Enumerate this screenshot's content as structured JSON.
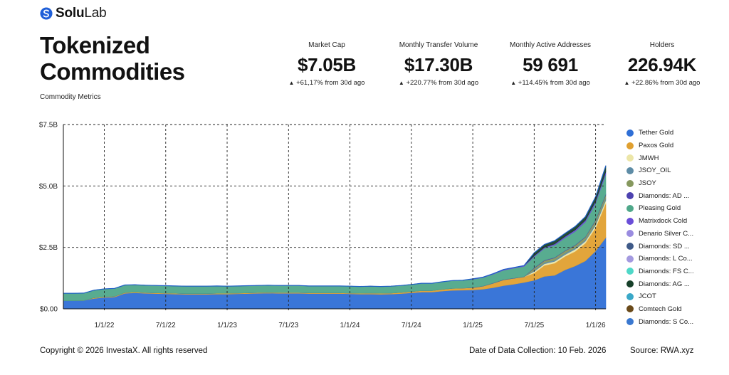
{
  "brand": {
    "name_part1": "Solu",
    "name_part2": "Lab"
  },
  "header": {
    "title_line1": "Tokenized",
    "title_line2": "Commodities",
    "subtitle": "Commodity Metrics"
  },
  "metrics": [
    {
      "label": "Market Cap",
      "value": "$7.05B",
      "change": "+61,17% from 30d ago"
    },
    {
      "label": "Monthly Transfer Volume",
      "value": "$17.30B",
      "change": "+220.77% from 30d ago"
    },
    {
      "label": "Monthly Active Addresses",
      "value": "59 691",
      "change": "+114.45% from 30d ago"
    },
    {
      "label": "Holders",
      "value": "226.94K",
      "change": "+22.86% from 30d ago"
    }
  ],
  "legend": [
    {
      "name": "Tether Gold",
      "color": "#2f6fd6"
    },
    {
      "name": "Paxos Gold",
      "color": "#e0a030"
    },
    {
      "name": "JMWH",
      "color": "#ece6a8"
    },
    {
      "name": "JSOY_OIL",
      "color": "#5e8ca6"
    },
    {
      "name": "JSOY",
      "color": "#86985e"
    },
    {
      "name": "Diamonds: AD ...",
      "color": "#4d42b0"
    },
    {
      "name": "Pleasing Gold",
      "color": "#4fa88a"
    },
    {
      "name": "Matrixdock Cold",
      "color": "#6a4ed8"
    },
    {
      "name": "Denario Silver C...",
      "color": "#9a8ce0"
    },
    {
      "name": "Diamonds: SD ...",
      "color": "#3f5a88"
    },
    {
      "name": "Diamonds: L Co...",
      "color": "#a49ae0"
    },
    {
      "name": "Diamonds: FS C...",
      "color": "#4fd8c8"
    },
    {
      "name": "Diamonds: AG ...",
      "color": "#17402a"
    },
    {
      "name": "JCOT",
      "color": "#3aa8c8"
    },
    {
      "name": "Comtech Gold",
      "color": "#6a4a1a"
    },
    {
      "name": "Diamonds: S Co...",
      "color": "#3a78d0"
    }
  ],
  "chart_data": {
    "type": "area",
    "stacked": true,
    "x": [
      "2021-09",
      "2021-10",
      "2021-11",
      "2021-12",
      "2022-01",
      "2022-02",
      "2022-03",
      "2022-04",
      "2022-05",
      "2022-06",
      "2022-07",
      "2022-08",
      "2022-09",
      "2022-10",
      "2022-11",
      "2022-12",
      "2023-01",
      "2023-02",
      "2023-03",
      "2023-04",
      "2023-05",
      "2023-06",
      "2023-07",
      "2023-08",
      "2023-09",
      "2023-10",
      "2023-11",
      "2023-12",
      "2024-01",
      "2024-02",
      "2024-03",
      "2024-04",
      "2024-05",
      "2024-06",
      "2024-07",
      "2024-08",
      "2024-09",
      "2024-10",
      "2024-11",
      "2024-12",
      "2025-01",
      "2025-02",
      "2025-03",
      "2025-04",
      "2025-05",
      "2025-06",
      "2025-07",
      "2025-08",
      "2025-09",
      "2025-10",
      "2025-11",
      "2025-12",
      "2026-01",
      "2026-02"
    ],
    "x_ticks": [
      "1/1/22",
      "7/1/22",
      "1/1/23",
      "7/1/23",
      "1/1/24",
      "7/1/24",
      "1/1/25",
      "7/1/25",
      "1/1/26"
    ],
    "y_ticks": [
      "$0.00",
      "$2.5B",
      "$5.0B",
      "$7.5B"
    ],
    "ylim": [
      0,
      7.5
    ],
    "y_unit": "B USD",
    "grid": true,
    "legend_position": "right",
    "series": [
      {
        "name": "Tether Gold",
        "color": "#2f6fd6",
        "values": [
          0.33,
          0.33,
          0.34,
          0.42,
          0.46,
          0.48,
          0.63,
          0.65,
          0.63,
          0.62,
          0.61,
          0.6,
          0.59,
          0.59,
          0.59,
          0.6,
          0.6,
          0.61,
          0.62,
          0.63,
          0.64,
          0.63,
          0.63,
          0.63,
          0.62,
          0.62,
          0.62,
          0.62,
          0.61,
          0.6,
          0.6,
          0.59,
          0.6,
          0.62,
          0.65,
          0.68,
          0.68,
          0.72,
          0.75,
          0.76,
          0.77,
          0.8,
          0.86,
          0.94,
          1.0,
          1.07,
          1.16,
          1.32,
          1.36,
          1.58,
          1.74,
          1.95,
          2.35,
          2.9
        ]
      },
      {
        "name": "Paxos Gold",
        "color": "#e0a030",
        "values": [
          0.0,
          0.0,
          0.0,
          0.03,
          0.03,
          0.03,
          0.03,
          0.03,
          0.03,
          0.03,
          0.03,
          0.03,
          0.03,
          0.03,
          0.03,
          0.03,
          0.03,
          0.03,
          0.03,
          0.03,
          0.03,
          0.03,
          0.03,
          0.03,
          0.03,
          0.03,
          0.03,
          0.03,
          0.03,
          0.03,
          0.04,
          0.04,
          0.04,
          0.05,
          0.05,
          0.06,
          0.06,
          0.07,
          0.08,
          0.08,
          0.09,
          0.12,
          0.18,
          0.24,
          0.24,
          0.23,
          0.3,
          0.45,
          0.5,
          0.55,
          0.6,
          0.72,
          0.95,
          1.4
        ]
      },
      {
        "name": "JMWH",
        "color": "#ece6a8",
        "values": [
          0.0,
          0.0,
          0.0,
          0.0,
          0.0,
          0.0,
          0.0,
          0.0,
          0.0,
          0.0,
          0.0,
          0.0,
          0.0,
          0.0,
          0.0,
          0.0,
          0.0,
          0.0,
          0.0,
          0.0,
          0.0,
          0.0,
          0.0,
          0.0,
          0.0,
          0.0,
          0.0,
          0.0,
          0.0,
          0.0,
          0.0,
          0.0,
          0.0,
          0.0,
          0.0,
          0.0,
          0.0,
          0.0,
          0.0,
          0.0,
          0.0,
          0.0,
          0.0,
          0.0,
          0.0,
          0.0,
          0.06,
          0.06,
          0.07,
          0.07,
          0.08,
          0.08,
          0.1,
          0.12
        ]
      },
      {
        "name": "JSOY_OIL",
        "color": "#5e8ca6",
        "values": [
          0.0,
          0.0,
          0.0,
          0.0,
          0.0,
          0.0,
          0.0,
          0.0,
          0.0,
          0.0,
          0.0,
          0.0,
          0.0,
          0.0,
          0.0,
          0.0,
          0.0,
          0.0,
          0.0,
          0.0,
          0.0,
          0.0,
          0.0,
          0.0,
          0.0,
          0.0,
          0.0,
          0.0,
          0.0,
          0.0,
          0.0,
          0.0,
          0.0,
          0.0,
          0.0,
          0.0,
          0.0,
          0.0,
          0.0,
          0.0,
          0.0,
          0.0,
          0.0,
          0.0,
          0.0,
          0.0,
          0.05,
          0.05,
          0.05,
          0.06,
          0.06,
          0.06,
          0.07,
          0.08
        ]
      },
      {
        "name": "JSOY",
        "color": "#86985e",
        "values": [
          0.0,
          0.0,
          0.0,
          0.0,
          0.0,
          0.0,
          0.0,
          0.0,
          0.0,
          0.0,
          0.0,
          0.0,
          0.0,
          0.0,
          0.0,
          0.0,
          0.0,
          0.0,
          0.0,
          0.0,
          0.0,
          0.0,
          0.0,
          0.0,
          0.0,
          0.0,
          0.0,
          0.0,
          0.0,
          0.0,
          0.0,
          0.0,
          0.0,
          0.0,
          0.0,
          0.0,
          0.0,
          0.0,
          0.0,
          0.0,
          0.0,
          0.0,
          0.0,
          0.0,
          0.0,
          0.0,
          0.08,
          0.08,
          0.09,
          0.09,
          0.1,
          0.1,
          0.12,
          0.14
        ]
      },
      {
        "name": "Diamonds: AD ...",
        "color": "#4d42b0",
        "values": [
          0.0,
          0.0,
          0.0,
          0.0,
          0.0,
          0.0,
          0.0,
          0.0,
          0.0,
          0.0,
          0.0,
          0.0,
          0.0,
          0.0,
          0.0,
          0.0,
          0.0,
          0.0,
          0.0,
          0.0,
          0.0,
          0.0,
          0.0,
          0.0,
          0.0,
          0.0,
          0.0,
          0.0,
          0.0,
          0.0,
          0.0,
          0.0,
          0.0,
          0.0,
          0.0,
          0.0,
          0.0,
          0.0,
          0.0,
          0.0,
          0.01,
          0.01,
          0.01,
          0.01,
          0.01,
          0.01,
          0.02,
          0.02,
          0.02,
          0.02,
          0.02,
          0.02,
          0.03,
          0.04
        ]
      },
      {
        "name": "Pleasing Gold",
        "color": "#4fa88a",
        "values": [
          0.3,
          0.3,
          0.3,
          0.31,
          0.32,
          0.32,
          0.31,
          0.3,
          0.3,
          0.3,
          0.3,
          0.3,
          0.3,
          0.3,
          0.3,
          0.3,
          0.29,
          0.29,
          0.29,
          0.29,
          0.29,
          0.29,
          0.29,
          0.29,
          0.28,
          0.28,
          0.28,
          0.28,
          0.28,
          0.28,
          0.28,
          0.28,
          0.28,
          0.28,
          0.29,
          0.3,
          0.3,
          0.31,
          0.32,
          0.32,
          0.33,
          0.34,
          0.36,
          0.38,
          0.4,
          0.42,
          0.45,
          0.48,
          0.5,
          0.52,
          0.55,
          0.6,
          0.68,
          0.8
        ]
      },
      {
        "name": "Matrixdock Cold",
        "color": "#6a4ed8",
        "values": [
          0.0,
          0.0,
          0.0,
          0.0,
          0.0,
          0.0,
          0.0,
          0.0,
          0.0,
          0.0,
          0.0,
          0.0,
          0.0,
          0.0,
          0.0,
          0.0,
          0.0,
          0.0,
          0.0,
          0.0,
          0.0,
          0.0,
          0.0,
          0.0,
          0.0,
          0.0,
          0.0,
          0.0,
          0.0,
          0.0,
          0.0,
          0.0,
          0.0,
          0.0,
          0.0,
          0.0,
          0.0,
          0.0,
          0.0,
          0.0,
          0.02,
          0.02,
          0.02,
          0.03,
          0.03,
          0.03,
          0.04,
          0.04,
          0.05,
          0.05,
          0.06,
          0.07,
          0.08,
          0.1
        ]
      },
      {
        "name": "Diamonds: AG ...",
        "color": "#17402a",
        "values": [
          0.0,
          0.0,
          0.0,
          0.0,
          0.0,
          0.0,
          0.0,
          0.0,
          0.0,
          0.0,
          0.0,
          0.0,
          0.0,
          0.0,
          0.0,
          0.0,
          0.0,
          0.0,
          0.0,
          0.0,
          0.0,
          0.0,
          0.0,
          0.0,
          0.0,
          0.0,
          0.0,
          0.0,
          0.0,
          0.0,
          0.0,
          0.0,
          0.0,
          0.0,
          0.0,
          0.0,
          0.0,
          0.0,
          0.0,
          0.0,
          0.0,
          0.0,
          0.0,
          0.0,
          0.0,
          0.0,
          0.12,
          0.12,
          0.13,
          0.13,
          0.14,
          0.15,
          0.18,
          0.25
        ]
      }
    ]
  },
  "footer": {
    "copyright": "Copyright © 2026 InvestaX. All rights reserved",
    "date": "Date of Data Collection: 10 Feb. 2026",
    "source": "Source: RWA.xyz"
  }
}
